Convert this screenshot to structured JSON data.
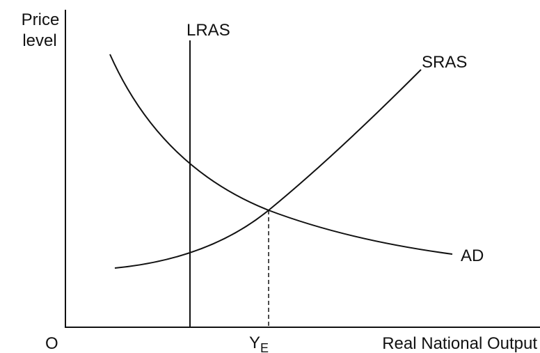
{
  "axes": {
    "y_label": [
      "Price",
      "level"
    ],
    "x_label": "Real National Output",
    "origin": "O"
  },
  "curves": {
    "lras": "LRAS",
    "sras": "SRAS",
    "ad": "AD"
  },
  "equilibrium": {
    "label": "Y",
    "subscript": "E"
  }
}
